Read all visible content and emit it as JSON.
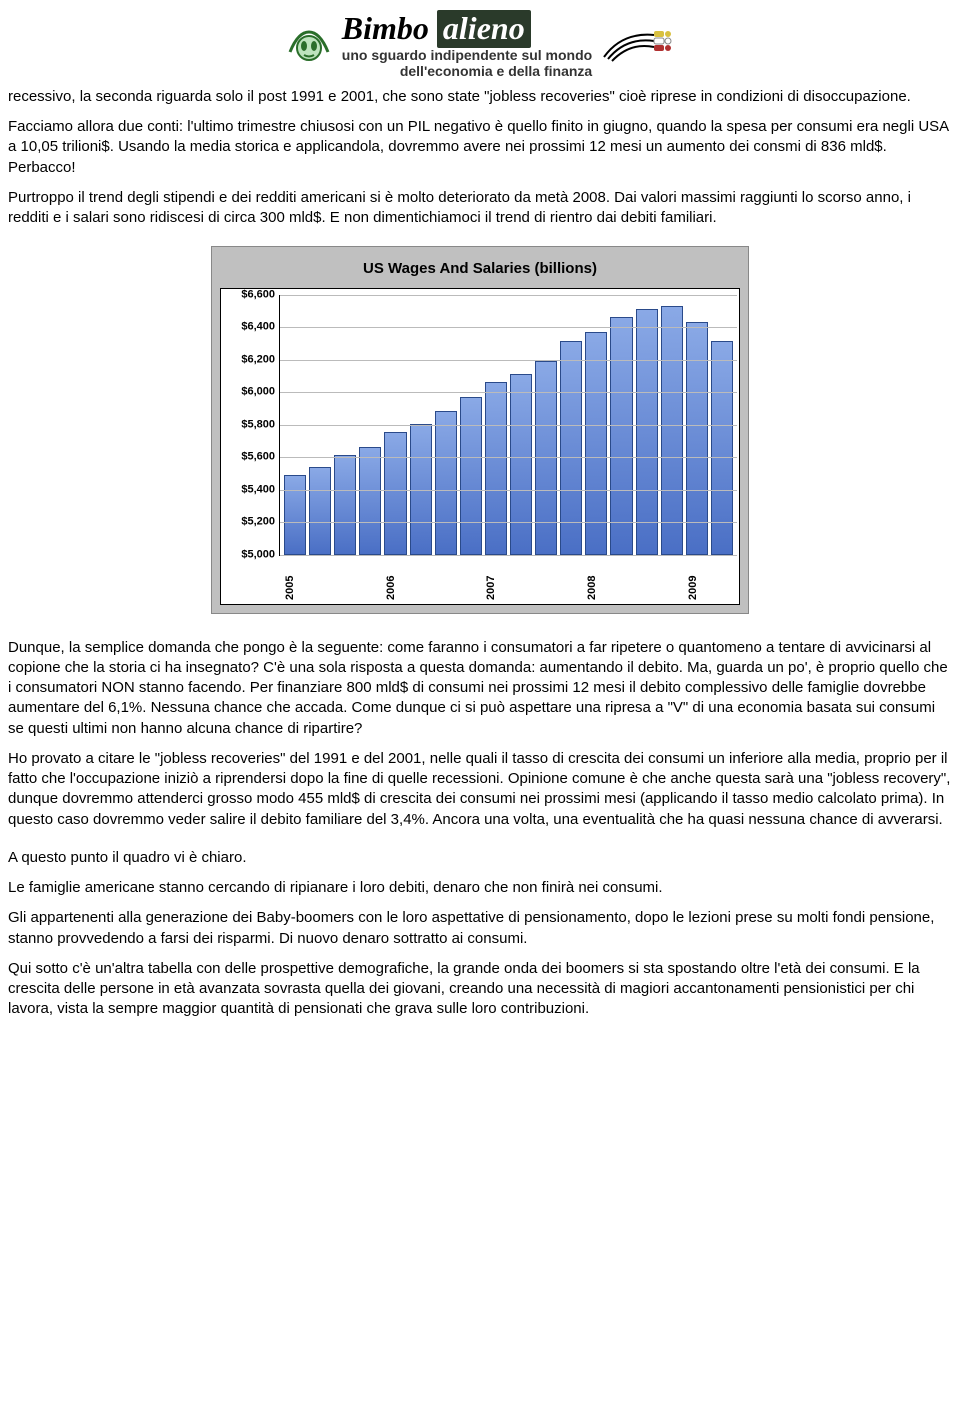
{
  "brand": {
    "name_plain": "Bimbo",
    "name_highlight": "alieno",
    "tagline_line1": "uno sguardo indipendente sul mondo",
    "tagline_line2": "dell'economia e della finanza"
  },
  "paragraphs": {
    "p1": "recessivo, la seconda riguarda solo il post 1991 e 2001, che sono state \"jobless recoveries\" cioè riprese in condizioni di disoccupazione.",
    "p2": "Facciamo allora due conti: l'ultimo trimestre chiusosi con un PIL negativo è quello finito in giugno, quando la spesa per consumi era negli USA a 10,05 trilioni$. Usando la media storica e applicandola, dovremmo avere nei prossimi 12 mesi un aumento dei consmi di 836 mld$. Perbacco!",
    "p3": "Purtroppo il trend degli stipendi e dei redditi americani si è molto deteriorato da metà 2008. Dai valori massimi raggiunti lo scorso anno, i redditi e i salari sono ridiscesi di circa 300 mld$. E non dimentichiamoci il trend di rientro dai debiti familiari.",
    "p4": "Dunque, la semplice domanda che pongo è la seguente: come faranno i consumatori a far ripetere o quantomeno a tentare di avvicinarsi al copione che la storia ci ha insegnato? C'è una sola risposta a questa domanda: aumentando il debito. Ma, guarda un po', è proprio quello che i consumatori NON stanno facendo. Per finanziare 800 mld$ di consumi nei prossimi 12 mesi il debito complessivo delle famiglie dovrebbe aumentare del 6,1%. Nessuna chance che accada. Come dunque ci si può aspettare una ripresa a \"V\" di una economia basata sui consumi se questi ultimi non hanno alcuna chance di ripartire?",
    "p5": "Ho provato a citare le \"jobless recoveries\" del 1991 e del 2001, nelle quali il tasso di crescita dei consumi un inferiore alla media, proprio per il fatto che l'occupazione iniziò a riprendersi dopo la fine di quelle recessioni. Opinione comune è che anche questa sarà una \"jobless recovery\", dunque dovremmo attenderci grosso modo 455 mld$ di crescita dei consumi nei prossimi mesi (applicando il tasso medio calcolato prima). In questo caso dovremmo veder salire il debito familiare del 3,4%. Ancora una volta, una eventualità che ha quasi nessuna chance di avverarsi.",
    "p6": "A questo punto il quadro vi è chiaro.",
    "p7": "Le famiglie americane stanno cercando di ripianare i loro debiti, denaro che non finirà nei consumi.",
    "p8": "Gli appartenenti alla generazione dei Baby-boomers con le loro aspettative di pensionamento, dopo le lezioni prese su molti fondi pensione, stanno provvedendo a farsi dei risparmi. Di nuovo denaro sottratto ai consumi.",
    "p9": "Qui sotto c'è un'altra tabella con delle prospettive demografiche, la grande onda dei boomers si sta spostando oltre l'età dei consumi. E la crescita delle persone in età avanzata sovrasta quella dei giovani, creando una necessità di magiori accantonamenti pensionistici per chi lavora, vista la sempre maggior quantità di pensionati che grava sulle loro contribuzioni."
  },
  "chart": {
    "type": "bar",
    "title": "US Wages And Salaries (billions)",
    "y_ticks": [
      "$6,600",
      "$6,400",
      "$6,200",
      "$6,000",
      "$5,800",
      "$5,600",
      "$5,400",
      "$5,200",
      "$5,000"
    ],
    "y_min": 5000,
    "y_max": 6600,
    "x_labels": [
      "2005",
      "",
      "",
      "",
      "2006",
      "",
      "",
      "",
      "2007",
      "",
      "",
      "",
      "2008",
      "",
      "",
      "",
      "2009",
      ""
    ],
    "values": [
      5480,
      5530,
      5600,
      5650,
      5740,
      5790,
      5870,
      5960,
      6050,
      6100,
      6180,
      6300,
      6360,
      6450,
      6500,
      6520,
      6420,
      6300
    ],
    "bar_color_top": "#8aa9e6",
    "bar_color_bottom": "#4a6fc5",
    "bar_border": "#2a4a8a",
    "grid_color": "#bbbbbb",
    "chart_bg": "#c0c0c0",
    "plot_bg": "#ffffff"
  }
}
